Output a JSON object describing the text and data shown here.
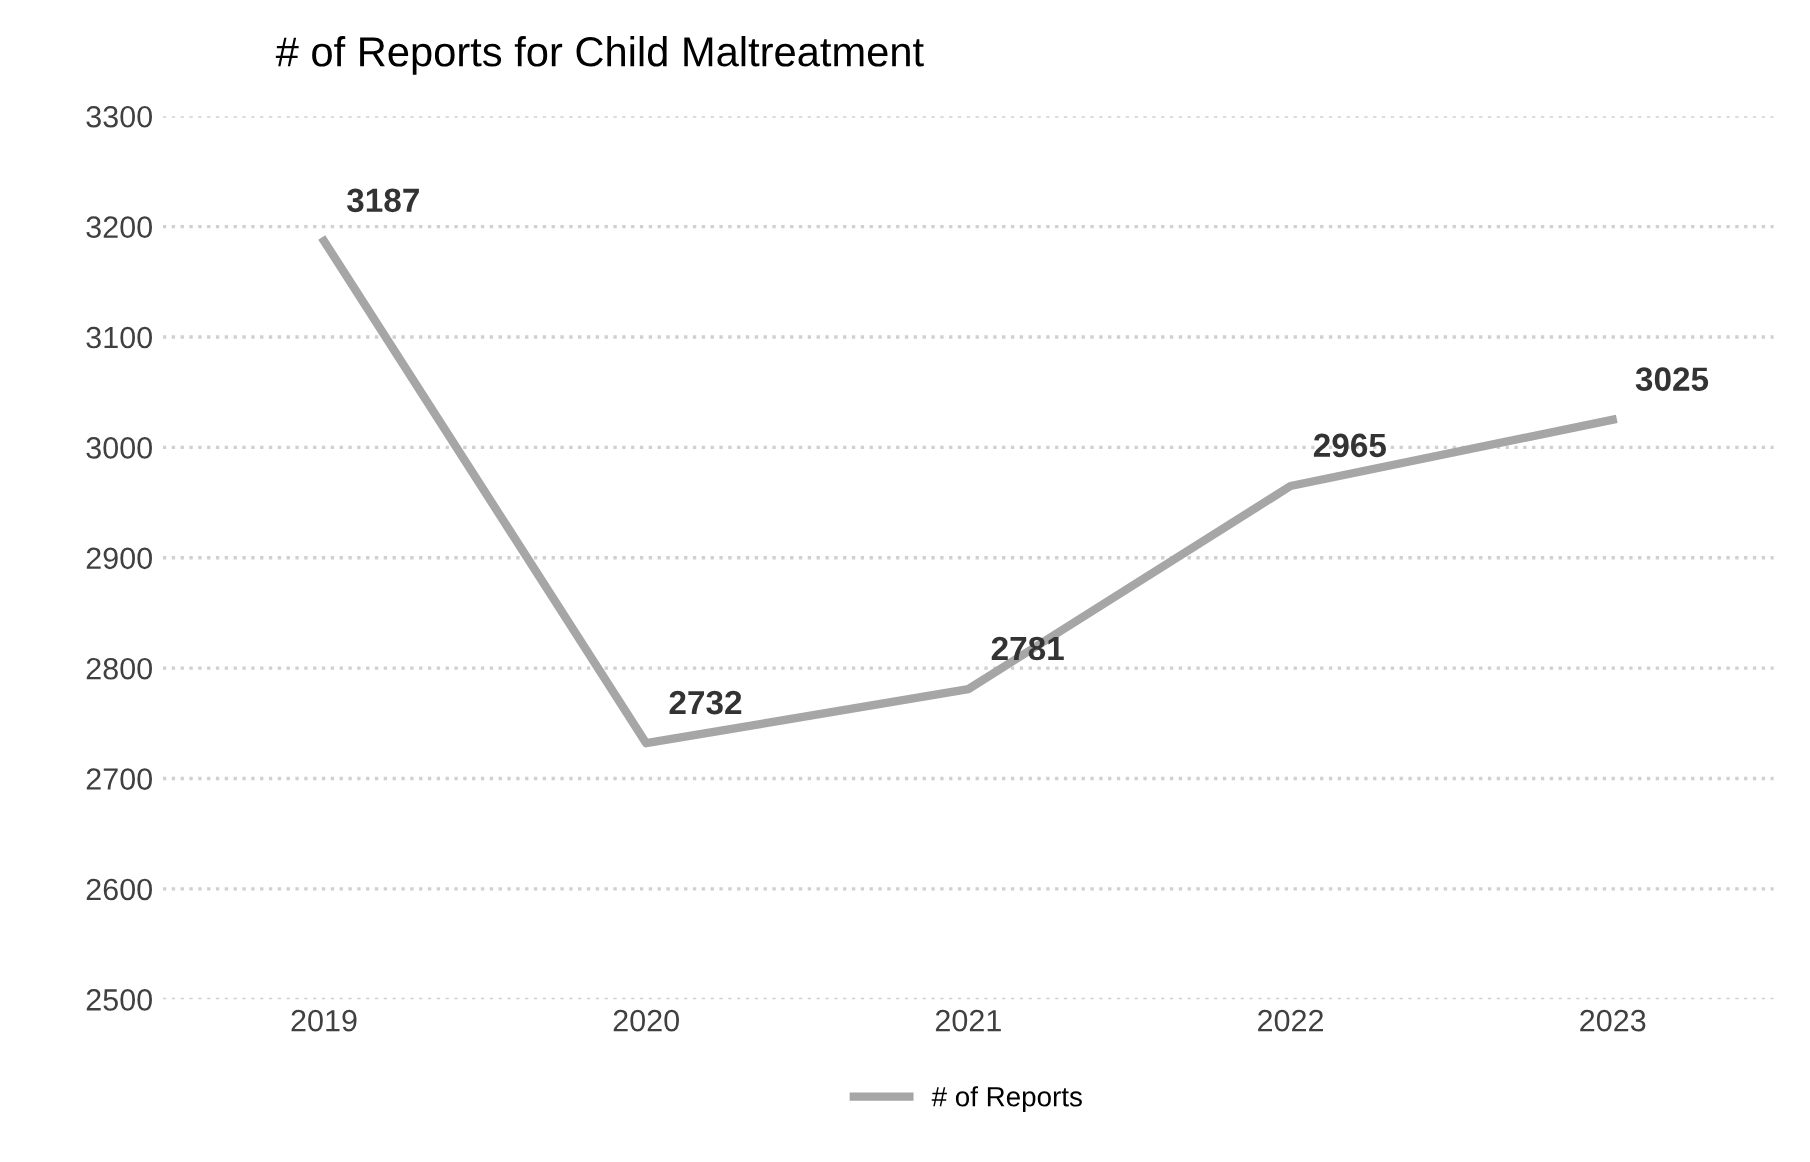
{
  "chart_data": {
    "type": "line",
    "title": "# of Reports for Child Maltreatment",
    "categories": [
      "2019",
      "2020",
      "2021",
      "2022",
      "2023"
    ],
    "series": [
      {
        "name": "# of Reports",
        "color": "#a6a6a6",
        "values": [
          3187,
          2732,
          2781,
          2965,
          3025
        ]
      }
    ],
    "ylim": [
      2500,
      3300
    ],
    "yticks": [
      2500,
      2600,
      2700,
      2800,
      2900,
      3000,
      3100,
      3200,
      3300
    ],
    "grid": "y",
    "legend": "bottom",
    "data_labels": true,
    "marker": "none",
    "line_style": "solid"
  }
}
